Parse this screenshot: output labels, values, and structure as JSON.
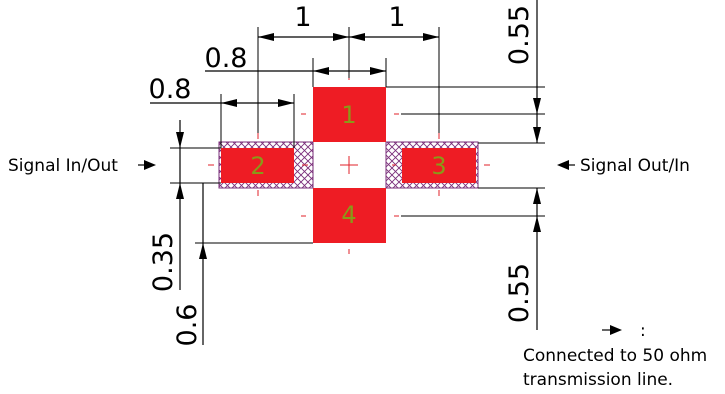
{
  "pads": [
    {
      "id": "1",
      "label": "1"
    },
    {
      "id": "2",
      "label": "2"
    },
    {
      "id": "3",
      "label": "3"
    },
    {
      "id": "4",
      "label": "4"
    }
  ],
  "dimensions": {
    "pitch_left": "1",
    "pitch_right": "1",
    "pad_width_top": "0.8",
    "pad_width_left": "0.8",
    "top_offset": "0.55",
    "bottom_offset": "0.55",
    "trace_width": "0.35",
    "pad_height": "0.6"
  },
  "signals": {
    "left": "Signal In/Out",
    "right": "Signal Out/In"
  },
  "legend": {
    "symbol": ":",
    "line1": "Connected to 50 ohm",
    "line2": "transmission line."
  },
  "colors": {
    "pad": "#ee1c24",
    "hatch": "#7a2e7a",
    "center_mark": "#e0202a",
    "pin_number": "#8a9a18",
    "line": "#000000"
  }
}
